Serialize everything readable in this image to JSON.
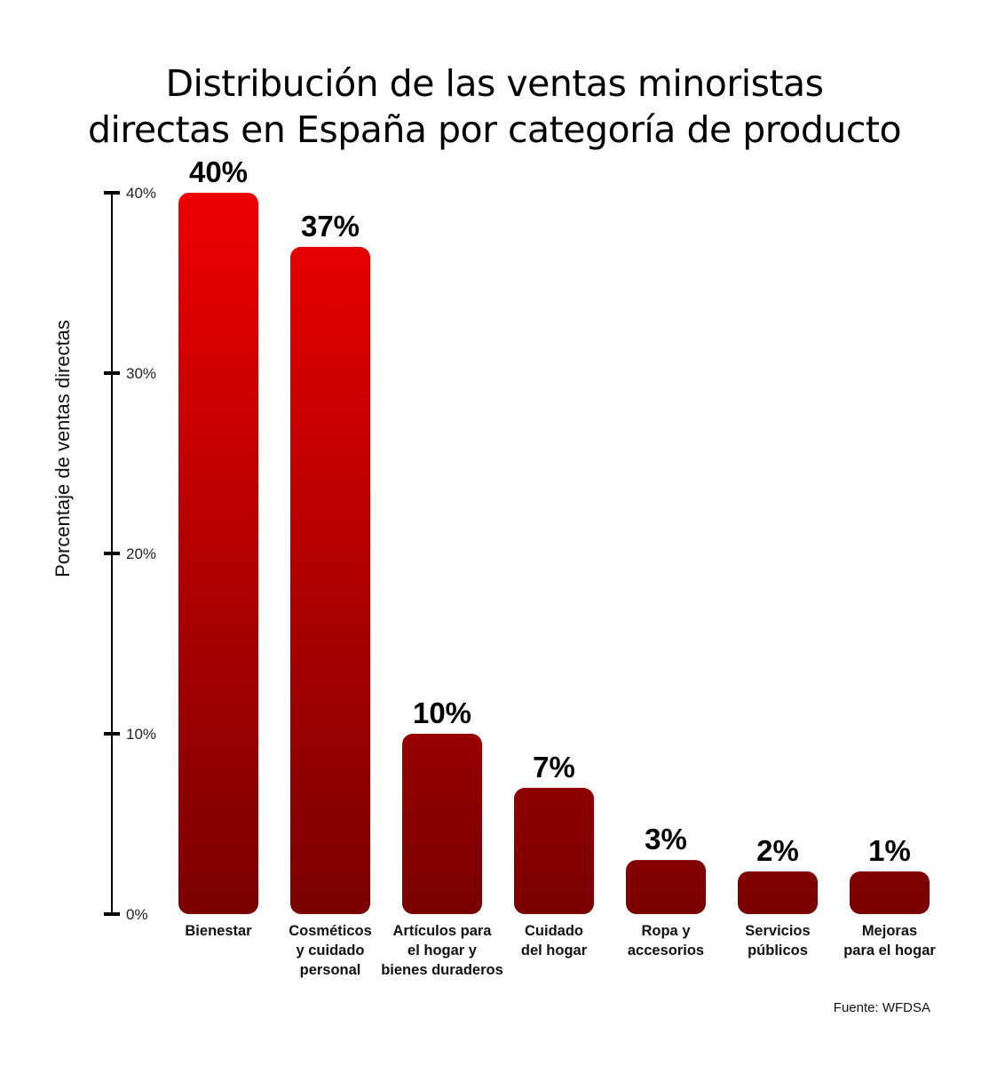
{
  "chart_data": {
    "type": "bar",
    "title_lines": [
      "Distribución de las ventas minoristas",
      "directas en España por categoría de producto"
    ],
    "ylabel": "Porcentaje de ventas directas",
    "xlabel": "",
    "ylim": [
      0,
      40
    ],
    "yticks": [
      {
        "value": 0,
        "label": "0%"
      },
      {
        "value": 10,
        "label": "10%"
      },
      {
        "value": 20,
        "label": "20%"
      },
      {
        "value": 30,
        "label": "30%"
      },
      {
        "value": 40,
        "label": "40%"
      }
    ],
    "categories": [
      [
        "Bienestar"
      ],
      [
        "Cosméticos",
        "y cuidado",
        "personal"
      ],
      [
        "Artículos para",
        "el hogar y",
        "bienes duraderos"
      ],
      [
        "Cuidado",
        "del hogar"
      ],
      [
        "Ropa y",
        "accesorios"
      ],
      [
        "Servicios",
        "públicos"
      ],
      [
        "Mejoras",
        "para el hogar"
      ]
    ],
    "values": [
      40,
      37,
      10,
      7,
      3,
      2,
      1
    ],
    "value_labels": [
      "40%",
      "37%",
      "10%",
      "7%",
      "3%",
      "2%",
      "1%"
    ],
    "grid": false,
    "colors": {
      "bar_top": "#ee0000",
      "bar_bottom": "#7a0000",
      "axis": "#000000"
    }
  },
  "source": "Fuente: WFDSA"
}
